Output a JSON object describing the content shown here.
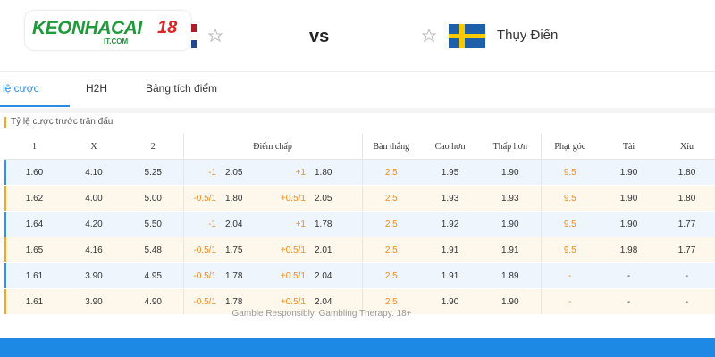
{
  "header": {
    "logo": {
      "brand": "KEONHACAI",
      "number": "18",
      "domain": "IT.COM"
    },
    "vs": "vs",
    "away_team": "Thụy Điển"
  },
  "tabs": [
    "lệ cược",
    "H2H",
    "Bảng tích điểm"
  ],
  "section_title": "Tỷ lệ cược trước trận đấu",
  "table": {
    "headers": [
      "1",
      "X",
      "2",
      "Điểm chấp",
      "Bàn thắng",
      "Cao hơn",
      "Thấp hơn",
      "Phạt góc",
      "Tài",
      "Xỉu"
    ],
    "rows": [
      [
        "1.60",
        "4.10",
        "5.25",
        "-1",
        "2.05",
        "+1",
        "1.80",
        "2.5",
        "1.95",
        "1.90",
        "9.5",
        "1.90",
        "1.80"
      ],
      [
        "1.62",
        "4.00",
        "5.00",
        "-0.5/1",
        "1.80",
        "+0.5/1",
        "2.05",
        "2.5",
        "1.93",
        "1.93",
        "9.5",
        "1.90",
        "1.80"
      ],
      [
        "1.64",
        "4.20",
        "5.50",
        "-1",
        "2.04",
        "+1",
        "1.78",
        "2.5",
        "1.92",
        "1.90",
        "9.5",
        "1.90",
        "1.77"
      ],
      [
        "1.65",
        "4.16",
        "5.48",
        "-0.5/1",
        "1.75",
        "+0.5/1",
        "2.01",
        "2.5",
        "1.91",
        "1.91",
        "9.5",
        "1.98",
        "1.77"
      ],
      [
        "1.61",
        "3.90",
        "4.95",
        "-0.5/1",
        "1.78",
        "+0.5/1",
        "2.04",
        "2.5",
        "1.91",
        "1.89",
        "-",
        "-",
        "-"
      ],
      [
        "1.61",
        "3.90",
        "4.90",
        "-0.5/1",
        "1.78",
        "+0.5/1",
        "2.04",
        "2.5",
        "1.90",
        "1.90",
        "-",
        "-",
        "-"
      ]
    ]
  },
  "footer": "Gamble Responsibly. Gambling Therapy. 18+"
}
